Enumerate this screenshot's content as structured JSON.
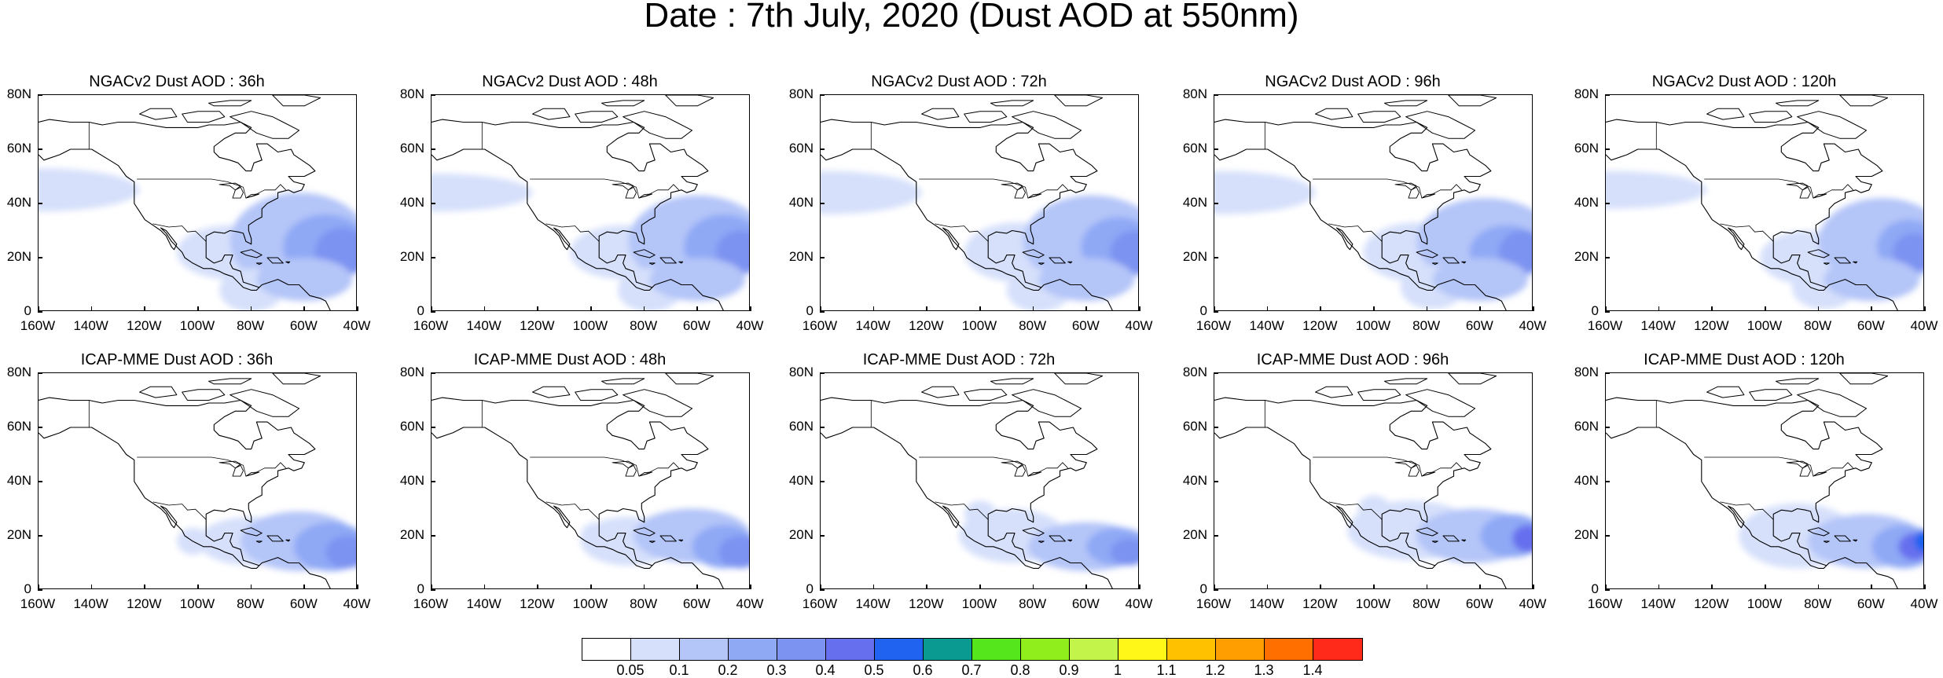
{
  "title": "Date : 7th July, 2020 (Dust AOD at 550nm)",
  "rows": [
    {
      "panels": [
        "NGACv2 Dust AOD : 36h",
        "NGACv2 Dust AOD : 48h",
        "NGACv2 Dust AOD : 72h",
        "NGACv2 Dust AOD : 96h",
        "NGACv2 Dust AOD : 120h"
      ]
    },
    {
      "panels": [
        "ICAP-MME Dust AOD : 36h",
        "ICAP-MME Dust AOD : 48h",
        "ICAP-MME Dust AOD : 72h",
        "ICAP-MME Dust AOD : 96h",
        "ICAP-MME Dust AOD : 120h"
      ]
    }
  ],
  "lat_labels": [
    "80N",
    "60N",
    "40N",
    "20N",
    "0"
  ],
  "lon_labels": [
    "160W",
    "140W",
    "120W",
    "100W",
    "80W",
    "60W",
    "40W"
  ],
  "colorbar": {
    "colors": [
      "#ffffff",
      "#d6e0fb",
      "#b4c5f8",
      "#8fa9f5",
      "#7d93f1",
      "#6670ee",
      "#1f63f0",
      "#0b9a92",
      "#55e71b",
      "#8fee1b",
      "#c2f44a",
      "#fff718",
      "#ffc100",
      "#ff9e00",
      "#ff6f00",
      "#ff2a1a"
    ],
    "labels": [
      "0.05",
      "0.1",
      "0.2",
      "0.3",
      "0.4",
      "0.5",
      "0.6",
      "0.7",
      "0.8",
      "0.9",
      "1",
      "1.1",
      "1.2",
      "1.3",
      "1.4"
    ]
  },
  "map": {
    "lon_range": [
      -160,
      -40
    ],
    "lat_range": [
      0,
      80
    ]
  }
}
